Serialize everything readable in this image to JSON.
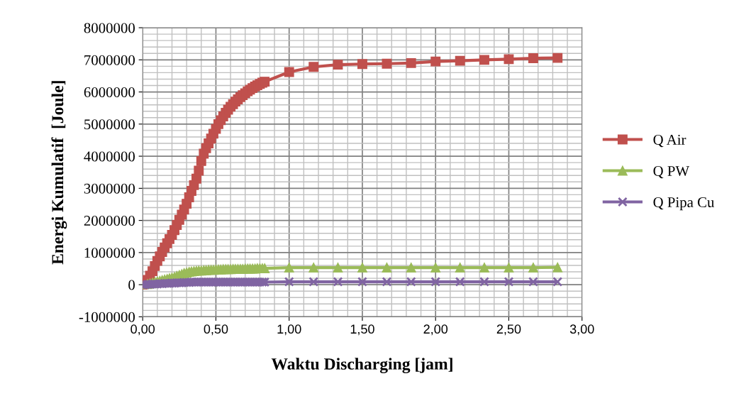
{
  "chart_data": {
    "type": "line",
    "xlabel": "Waktu Discharging [jam]",
    "ylabel": "Energi Kumulatif  [Joule]",
    "x": [
      0,
      0.017,
      0.033,
      0.05,
      0.067,
      0.083,
      0.1,
      0.117,
      0.133,
      0.15,
      0.167,
      0.183,
      0.2,
      0.217,
      0.233,
      0.25,
      0.267,
      0.283,
      0.3,
      0.317,
      0.333,
      0.35,
      0.367,
      0.383,
      0.4,
      0.417,
      0.433,
      0.45,
      0.467,
      0.483,
      0.5,
      0.517,
      0.533,
      0.55,
      0.567,
      0.583,
      0.6,
      0.617,
      0.633,
      0.65,
      0.667,
      0.683,
      0.7,
      0.717,
      0.733,
      0.75,
      0.767,
      0.783,
      0.8,
      0.817,
      0.833,
      1,
      1.167,
      1.333,
      1.5,
      1.667,
      1.833,
      2,
      2.167,
      2.333,
      2.5,
      2.667,
      2.833
    ],
    "series": [
      {
        "name": "Q Air",
        "color": "#c0504d",
        "marker": "square",
        "values": [
          0,
          50000,
          150000,
          280000,
          420000,
          580000,
          740000,
          880000,
          1020000,
          1160000,
          1290000,
          1420000,
          1550000,
          1700000,
          1860000,
          2020000,
          2180000,
          2340000,
          2520000,
          2720000,
          2920000,
          3100000,
          3300000,
          3550000,
          3850000,
          4080000,
          4250000,
          4400000,
          4550000,
          4700000,
          4850000,
          5000000,
          5120000,
          5240000,
          5350000,
          5450000,
          5540000,
          5620000,
          5700000,
          5770000,
          5840000,
          5900000,
          5960000,
          6020000,
          6070000,
          6120000,
          6170000,
          6210000,
          6250000,
          6290000,
          6320000,
          6620000,
          6780000,
          6850000,
          6870000,
          6880000,
          6900000,
          6950000,
          6970000,
          7000000,
          7020000,
          7050000,
          7060000
        ]
      },
      {
        "name": "Q PW",
        "color": "#9bbb59",
        "marker": "triangle",
        "values": [
          null,
          null,
          20000,
          40000,
          60000,
          80000,
          100000,
          120000,
          140000,
          160000,
          180000,
          200000,
          220000,
          240000,
          270000,
          300000,
          330000,
          360000,
          380000,
          400000,
          410000,
          420000,
          430000,
          440000,
          440000,
          450000,
          450000,
          460000,
          460000,
          460000,
          470000,
          470000,
          470000,
          480000,
          480000,
          480000,
          480000,
          490000,
          490000,
          490000,
          490000,
          490000,
          500000,
          500000,
          500000,
          500000,
          500000,
          510000,
          510000,
          510000,
          510000,
          530000,
          530000,
          530000,
          530000,
          530000,
          530000,
          530000,
          530000,
          530000,
          530000,
          530000,
          540000
        ]
      },
      {
        "name": "Q Pipa Cu",
        "color": "#8064a2",
        "marker": "cross",
        "values": [
          0,
          0,
          10000,
          10000,
          20000,
          20000,
          20000,
          30000,
          30000,
          40000,
          40000,
          40000,
          50000,
          50000,
          60000,
          60000,
          60000,
          70000,
          70000,
          70000,
          80000,
          80000,
          80000,
          80000,
          80000,
          80000,
          80000,
          80000,
          80000,
          80000,
          80000,
          80000,
          80000,
          80000,
          80000,
          80000,
          80000,
          80000,
          80000,
          80000,
          80000,
          80000,
          80000,
          80000,
          80000,
          80000,
          80000,
          80000,
          80000,
          80000,
          80000,
          90000,
          90000,
          90000,
          90000,
          90000,
          90000,
          90000,
          90000,
          90000,
          90000,
          90000,
          90000
        ]
      }
    ],
    "xlim": [
      0,
      3
    ],
    "ylim": [
      -1000000,
      8000000
    ],
    "xticks": [
      {
        "value": 0,
        "label": "0,00"
      },
      {
        "value": 0.5,
        "label": "0,50"
      },
      {
        "value": 1,
        "label": "1,00"
      },
      {
        "value": 1.5,
        "label": "1,50"
      },
      {
        "value": 2,
        "label": "2,00"
      },
      {
        "value": 2.5,
        "label": "2,50"
      },
      {
        "value": 3,
        "label": "3,00"
      }
    ],
    "yticks": [
      -1000000,
      0,
      1000000,
      2000000,
      3000000,
      4000000,
      5000000,
      6000000,
      7000000,
      8000000
    ],
    "grid": true,
    "legend": "right",
    "line_style": "solid"
  }
}
